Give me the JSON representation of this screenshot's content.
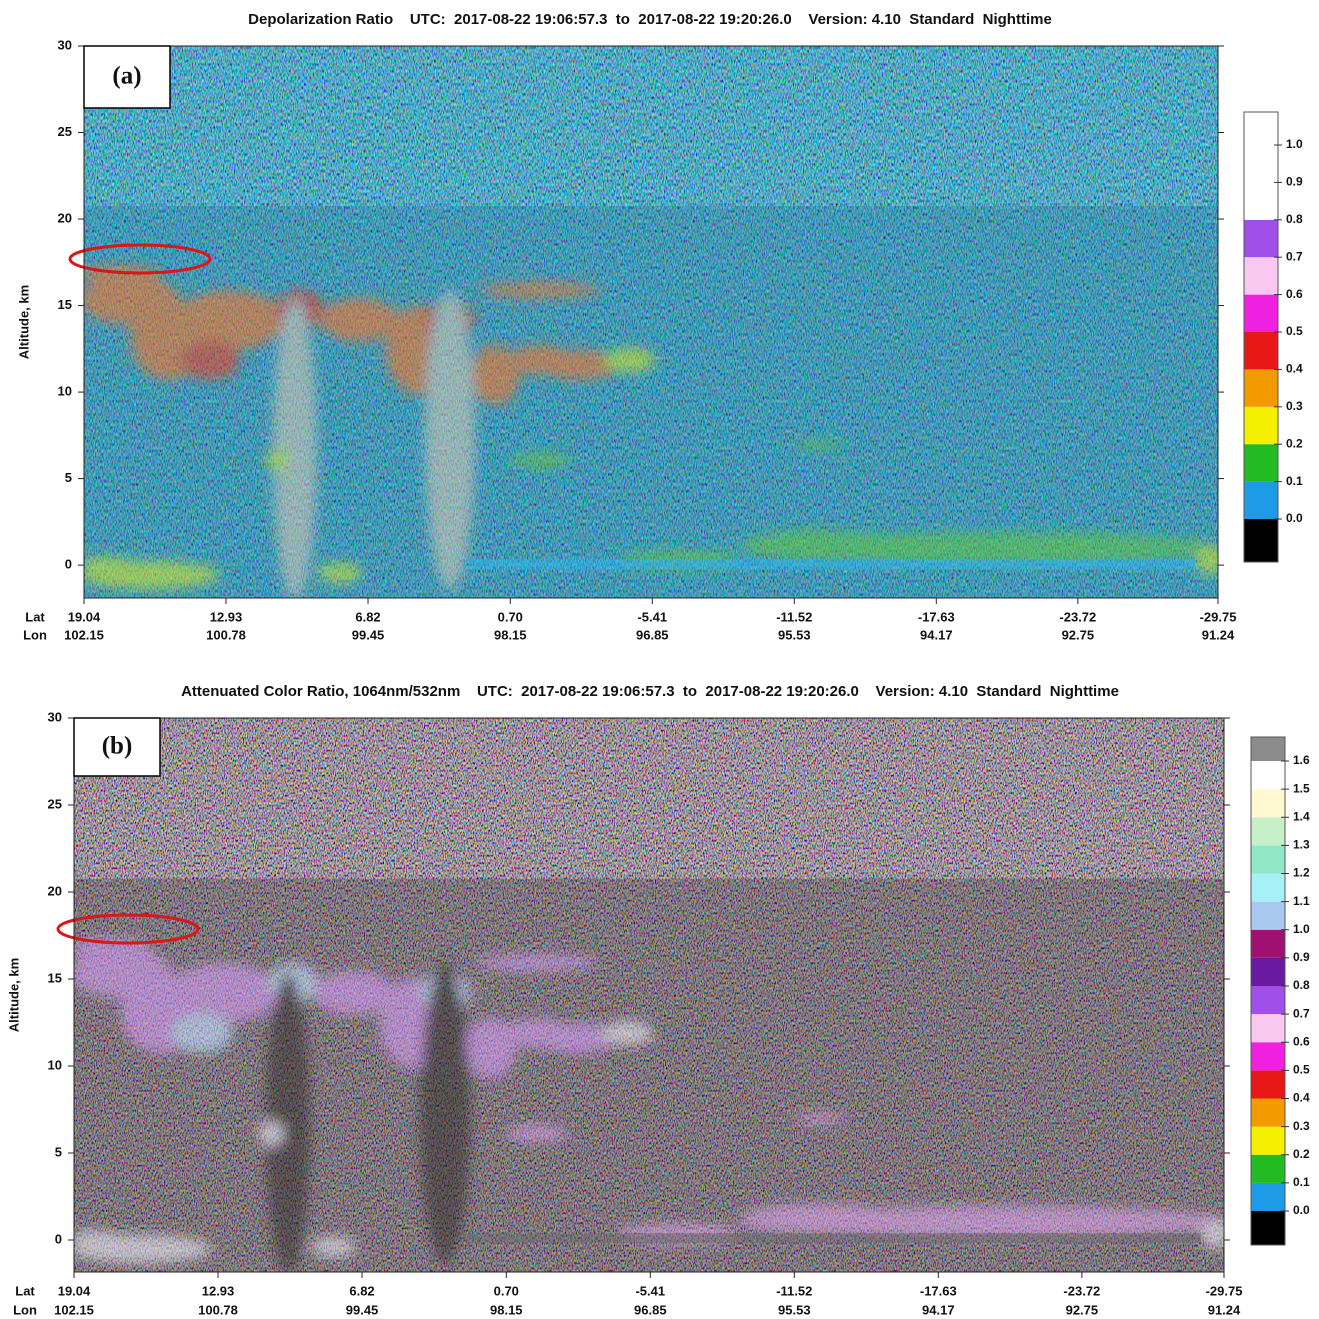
{
  "chart_data": [
    {
      "type": "heatmap",
      "title": "Depolarization Ratio    UTC:  2017-08-22 19:06:57.3  to  2017-08-22 19:20:26.0    Version: 4.10  Standard  Nighttime",
      "panel_label": "(a)",
      "y_label": "Altitude, km",
      "x_label": "Lat",
      "x2_label": "Lon",
      "ylim": [
        -1.9,
        30
      ],
      "yticks": [
        0,
        5,
        10,
        15,
        20,
        25,
        30
      ],
      "xlim": [
        19.04,
        -29.75
      ],
      "xticks": [
        19.04,
        12.93,
        6.82,
        {
          "value": 0.7,
          "label": "0.70"
        },
        -5.41,
        -11.52,
        -17.63,
        -23.72,
        -29.75
      ],
      "x2ticks": [
        102.15,
        100.78,
        99.45,
        98.15,
        96.85,
        95.53,
        94.17,
        92.75,
        91.24
      ],
      "colorbar": {
        "ticks": [
          {
            "value": 0,
            "label": "0.0"
          },
          0.1,
          0.2,
          0.3,
          0.4,
          0.5,
          0.6,
          0.7,
          0.8,
          0.9,
          {
            "value": 1,
            "label": "1.0"
          }
        ],
        "colors": [
          "#000000",
          "#1e9be6",
          "#22bb22",
          "#f5f000",
          "#f29a00",
          "#e81818",
          "#f020e0",
          "#f8c8f0",
          "#a050e8",
          "#ffffff",
          "#ffffff",
          "#ffffff"
        ]
      }
    },
    {
      "type": "heatmap",
      "title": "Attenuated Color Ratio, 1064nm/532nm    UTC:  2017-08-22 19:06:57.3  to  2017-08-22 19:20:26.0    Version: 4.10  Standard  Nighttime",
      "panel_label": "(b)",
      "y_label": "Altitude, km",
      "x_label": "Lat",
      "x2_label": "Lon",
      "ylim": [
        -1.84,
        30
      ],
      "yticks": [
        0,
        5,
        10,
        15,
        20,
        25,
        30
      ],
      "xlim": [
        19.04,
        -29.75
      ],
      "xticks": [
        19.04,
        12.93,
        6.82,
        {
          "value": 0.7,
          "label": "0.70"
        },
        -5.41,
        -11.52,
        -17.63,
        -23.72,
        -29.75
      ],
      "x2ticks": [
        102.15,
        100.78,
        99.45,
        98.15,
        96.85,
        95.53,
        94.17,
        92.75,
        91.24
      ],
      "colorbar": {
        "ticks": [
          {
            "value": 0,
            "label": "0.0"
          },
          0.1,
          0.2,
          0.3,
          0.4,
          0.5,
          0.6,
          0.7,
          0.8,
          0.9,
          {
            "value": 1,
            "label": "1.0"
          },
          1.1,
          1.2,
          1.3,
          1.4,
          1.5,
          1.6
        ],
        "colors": [
          "#000000",
          "#1e9be6",
          "#22bb22",
          "#f5f000",
          "#f29a00",
          "#e81818",
          "#f020e0",
          "#f8c8f0",
          "#a050e8",
          "#6a1aa0",
          "#a01070",
          "#a8c8f0",
          "#a8f0f8",
          "#90e8c8",
          "#c8f0c8",
          "#fff8d0",
          "#ffffff",
          "#8c8c8c"
        ]
      }
    }
  ]
}
